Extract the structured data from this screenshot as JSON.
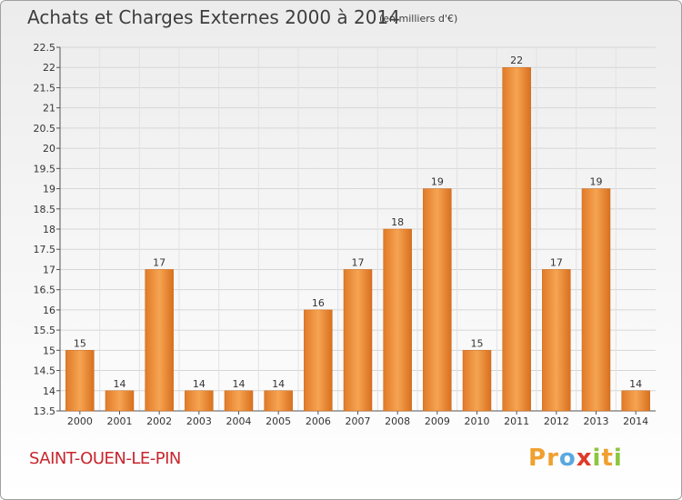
{
  "header": {
    "title": "Achats et Charges Externes 2000 à 2014",
    "subtitle": "(en milliers d'€)"
  },
  "footer": {
    "commune": "SAINT-OUEN-LE-PIN",
    "logo": [
      "P",
      "r",
      "o",
      "x",
      "i",
      "t",
      "i"
    ]
  },
  "colors": {
    "bar": "#f0923a",
    "bar_dark": "#d4701f",
    "logo": [
      "#f0a030",
      "#f0a030",
      "#5aa8e0",
      "#e03a2a",
      "#8cc63f",
      "#f0a030",
      "#8cc63f"
    ]
  },
  "chart_data": {
    "type": "bar",
    "categories": [
      "2000",
      "2001",
      "2002",
      "2003",
      "2004",
      "2005",
      "2006",
      "2007",
      "2008",
      "2009",
      "2010",
      "2011",
      "2012",
      "2013",
      "2014"
    ],
    "values": [
      15,
      14,
      17,
      14,
      14,
      14,
      16,
      17,
      18,
      19,
      15,
      22,
      17,
      19,
      14
    ],
    "title": "Achats et Charges Externes 2000 à 2014",
    "ylim": [
      13.5,
      22.5
    ],
    "yticks": [
      "13.5",
      "14",
      "14.5",
      "15",
      "15.5",
      "16",
      "16.5",
      "17",
      "17.5",
      "18",
      "18.5",
      "19",
      "19.5",
      "20",
      "20.5",
      "21",
      "21.5",
      "22",
      "22.5"
    ],
    "grid": true
  }
}
